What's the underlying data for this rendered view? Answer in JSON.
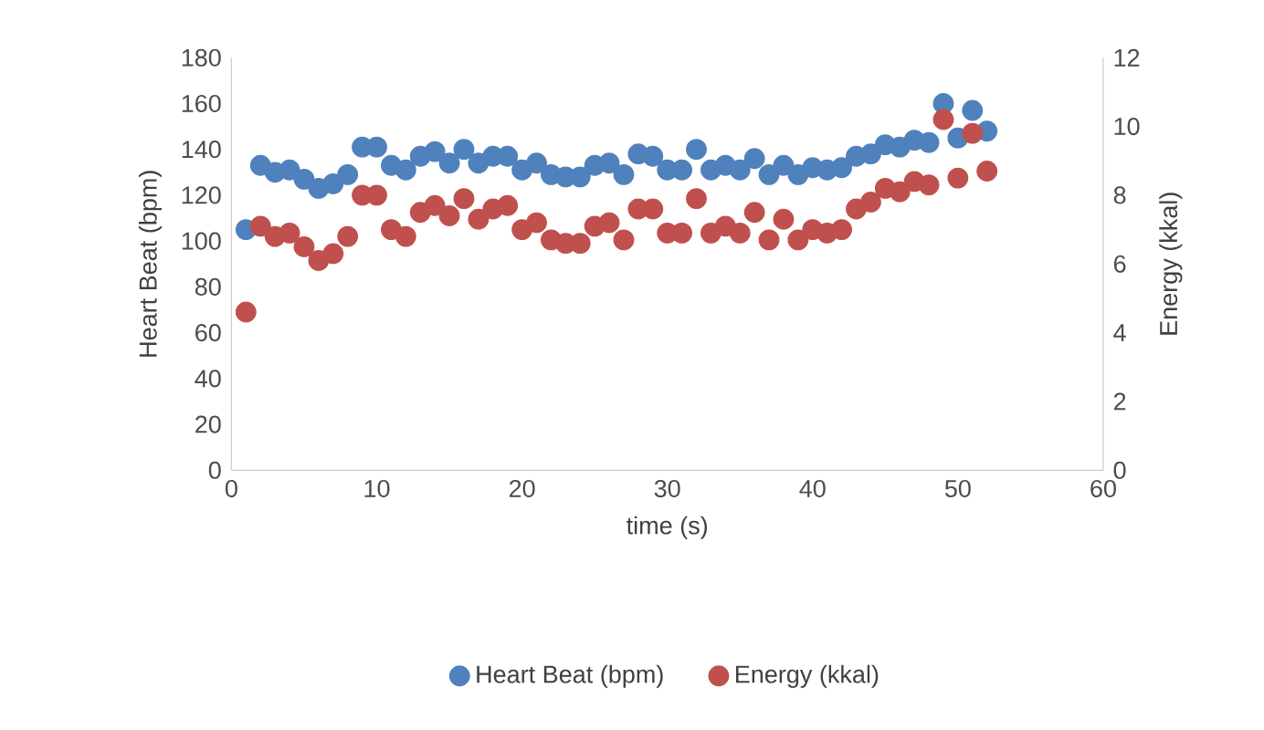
{
  "chart_data": {
    "type": "scatter",
    "xlabel": "time (s)",
    "ylabel": "Heart Beat (bpm)",
    "y2label": "Energy (kkal)",
    "xlim": [
      0,
      60
    ],
    "xticks": [
      0,
      10,
      20,
      30,
      40,
      50,
      60
    ],
    "ylim": [
      0,
      180
    ],
    "yticks": [
      0,
      20,
      40,
      60,
      80,
      100,
      120,
      140,
      160,
      180
    ],
    "y2lim": [
      0,
      12
    ],
    "y2ticks": [
      0,
      2,
      4,
      6,
      8,
      10,
      12
    ],
    "x": [
      1,
      2,
      3,
      4,
      5,
      6,
      7,
      8,
      9,
      10,
      11,
      12,
      13,
      14,
      15,
      16,
      17,
      18,
      19,
      20,
      21,
      22,
      23,
      24,
      25,
      26,
      27,
      28,
      29,
      30,
      31,
      32,
      33,
      34,
      35,
      36,
      37,
      38,
      39,
      40,
      41,
      42,
      43,
      44,
      45,
      46,
      47,
      48,
      49,
      50,
      51,
      52
    ],
    "legend": "bottom",
    "grid": false,
    "series": [
      {
        "name": "Heart Beat (bpm)",
        "color": "#4f81bd",
        "values": [
          105,
          133,
          130,
          131,
          127,
          123,
          125,
          129,
          141,
          141,
          133,
          131,
          137,
          139,
          134,
          140,
          134,
          137,
          137,
          131,
          134,
          129,
          128,
          128,
          133,
          134,
          129,
          138,
          137,
          131,
          131,
          140,
          131,
          133,
          131,
          136,
          129,
          133,
          129,
          132,
          131,
          132,
          137,
          138,
          142,
          141,
          144,
          143,
          160,
          145,
          157,
          148
        ]
      },
      {
        "name": "Energy (kkal)",
        "color": "#c0504d",
        "axis": "y2",
        "values": [
          4.6,
          7.1,
          6.8,
          6.9,
          6.5,
          6.1,
          6.3,
          6.8,
          8.0,
          8.0,
          7.0,
          6.8,
          7.5,
          7.7,
          7.4,
          7.9,
          7.3,
          7.6,
          7.7,
          7.0,
          7.2,
          6.7,
          6.6,
          6.6,
          7.1,
          7.2,
          6.7,
          7.6,
          7.6,
          6.9,
          6.9,
          7.9,
          6.9,
          7.1,
          6.9,
          7.5,
          6.7,
          7.3,
          6.7,
          7.0,
          6.9,
          7.0,
          7.6,
          7.8,
          8.2,
          8.1,
          8.4,
          8.3,
          10.2,
          8.5,
          9.8,
          8.7
        ]
      }
    ]
  }
}
